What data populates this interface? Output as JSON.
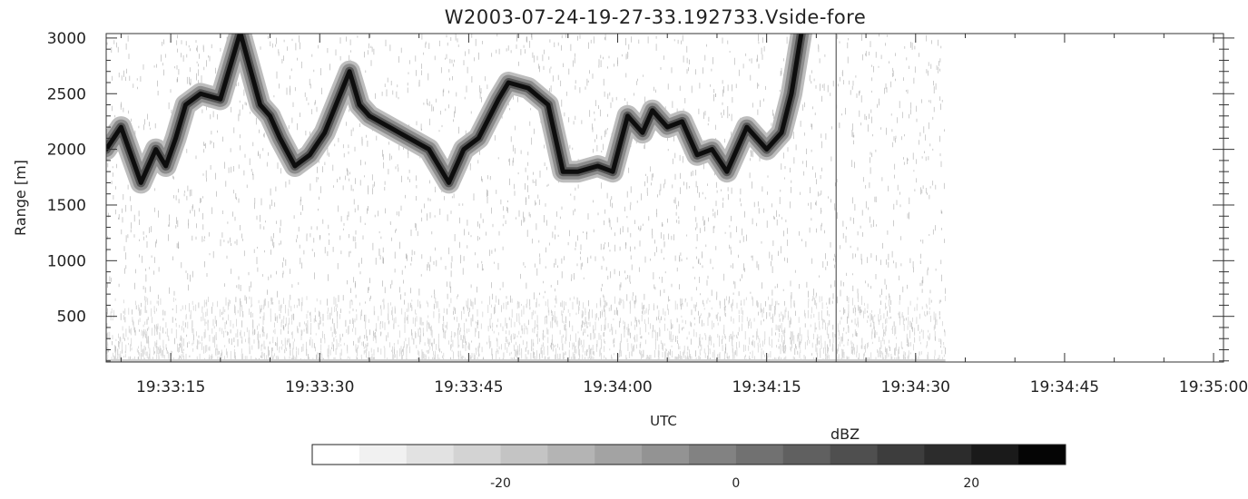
{
  "chart_data": {
    "type": "heatmap",
    "title": "W2003-07-24-19-27-33.192733.Vside-fore",
    "xlabel": "UTC",
    "ylabel": "Range [m]",
    "x_ticks": [
      "19:33:15",
      "19:33:30",
      "19:33:45",
      "19:34:00",
      "19:34:15",
      "19:34:30",
      "19:34:45",
      "19:35:00"
    ],
    "x_tick_seconds": [
      15,
      30,
      45,
      60,
      75,
      90,
      105,
      120
    ],
    "xlim_seconds": [
      8.5,
      121
    ],
    "data_end_seconds": 93,
    "vertical_line_seconds": 82,
    "y_ticks": [
      500,
      1000,
      1500,
      2000,
      2500,
      3000
    ],
    "ylim": [
      90,
      3040
    ],
    "cloud_ridge": {
      "time_seconds": [
        8.5,
        10,
        12,
        13.5,
        14.5,
        15.5,
        16.5,
        18,
        20,
        22,
        24,
        25,
        26,
        27.5,
        29,
        30.5,
        33,
        34,
        35,
        37,
        39,
        41,
        43,
        44.5,
        46,
        48,
        49,
        51,
        53,
        54.5,
        56,
        58,
        59.5,
        61,
        62.5,
        63.5,
        65,
        66.5,
        68,
        69.5,
        71,
        73,
        75,
        76.5,
        77.5,
        78.5
      ],
      "range_m": [
        2000,
        2200,
        1700,
        2000,
        1850,
        2100,
        2400,
        2500,
        2450,
        3050,
        2400,
        2300,
        2100,
        1850,
        1950,
        2150,
        2700,
        2400,
        2300,
        2200,
        2100,
        2000,
        1700,
        2000,
        2100,
        2450,
        2600,
        2550,
        2400,
        1800,
        1800,
        1850,
        1800,
        2300,
        2150,
        2350,
        2200,
        2250,
        1950,
        2000,
        1800,
        2200,
        2000,
        2150,
        2500,
        3050
      ]
    },
    "colorbar": {
      "label": "dBZ",
      "tick_labels": [
        "-20",
        "0",
        "20"
      ],
      "tick_values": [
        -20,
        0,
        20
      ],
      "range_dbz": [
        -36,
        28
      ],
      "levels": 16,
      "colors": [
        "#ffffff",
        "#f1f1f1",
        "#e2e2e2",
        "#d3d3d3",
        "#c4c4c4",
        "#b4b4b4",
        "#a3a3a3",
        "#939393",
        "#828282",
        "#717171",
        "#606060",
        "#4f4f4f",
        "#3d3d3d",
        "#2c2c2c",
        "#1a1a1a",
        "#050505"
      ]
    }
  }
}
